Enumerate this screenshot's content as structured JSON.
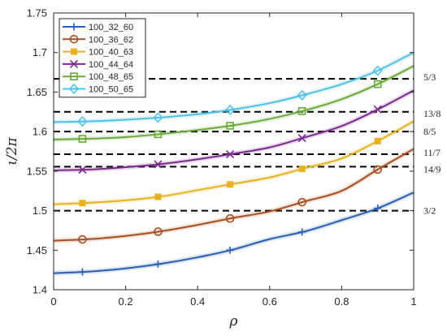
{
  "chart_data": {
    "type": "line",
    "xlabel": "ρ",
    "ylabel": "ι/2π",
    "xlim": [
      0,
      1
    ],
    "ylim": [
      1.4,
      1.75
    ],
    "xticks": [
      0,
      0.2,
      0.4,
      0.6,
      0.8,
      1
    ],
    "xtick_labels": [
      "0",
      "0.2",
      "0.4",
      "0.6",
      "0.8",
      "1"
    ],
    "yticks": [
      1.4,
      1.45,
      1.5,
      1.55,
      1.6,
      1.65,
      1.7,
      1.75
    ],
    "ytick_labels": [
      "1.4",
      "1.45",
      "1.5",
      "1.55",
      "1.6",
      "1.65",
      "1.7",
      "1.75"
    ],
    "grid": false,
    "legend_position": "top-left",
    "series": [
      {
        "name": "100_32_60",
        "color": "#2a5fb0",
        "marker": "plus",
        "x": [
          0,
          0.1,
          0.2,
          0.3,
          0.4,
          0.5,
          0.6,
          0.7,
          0.8,
          0.9,
          1.0
        ],
        "y": [
          1.421,
          1.423,
          1.427,
          1.433,
          1.441,
          1.451,
          1.464,
          1.474,
          1.488,
          1.503,
          1.523
        ],
        "marker_x": [
          0.08,
          0.29,
          0.49,
          0.69,
          0.9
        ]
      },
      {
        "name": "100_36_62",
        "color": "#a84f22",
        "marker": "circle",
        "x": [
          0,
          0.1,
          0.2,
          0.3,
          0.4,
          0.5,
          0.6,
          0.7,
          0.8,
          0.9,
          1.0
        ],
        "y": [
          1.462,
          1.464,
          1.468,
          1.474,
          1.482,
          1.491,
          1.499,
          1.512,
          1.525,
          1.552,
          1.578
        ],
        "marker_x": [
          0.08,
          0.29,
          0.49,
          0.69,
          0.9
        ]
      },
      {
        "name": "100_40_63",
        "color": "#e8b11f",
        "marker": "square-filled",
        "x": [
          0,
          0.1,
          0.2,
          0.3,
          0.4,
          0.5,
          0.6,
          0.7,
          0.8,
          0.9,
          1.0
        ],
        "y": [
          1.508,
          1.51,
          1.513,
          1.518,
          1.526,
          1.534,
          1.542,
          1.554,
          1.566,
          1.588,
          1.613
        ],
        "marker_x": [
          0.08,
          0.29,
          0.49,
          0.69,
          0.9
        ]
      },
      {
        "name": "100_44_64",
        "color": "#7a2a8c",
        "marker": "x",
        "x": [
          0,
          0.1,
          0.2,
          0.3,
          0.4,
          0.5,
          0.6,
          0.7,
          0.8,
          0.9,
          1.0
        ],
        "y": [
          1.551,
          1.552,
          1.555,
          1.559,
          1.565,
          1.572,
          1.58,
          1.593,
          1.607,
          1.628,
          1.652
        ],
        "marker_x": [
          0.08,
          0.29,
          0.49,
          0.69,
          0.9
        ]
      },
      {
        "name": "100_48_65",
        "color": "#6aa83c",
        "marker": "square",
        "x": [
          0,
          0.1,
          0.2,
          0.3,
          0.4,
          0.5,
          0.6,
          0.7,
          0.8,
          0.9,
          1.0
        ],
        "y": [
          1.59,
          1.591,
          1.593,
          1.597,
          1.602,
          1.608,
          1.616,
          1.627,
          1.641,
          1.66,
          1.683
        ],
        "marker_x": [
          0.08,
          0.29,
          0.49,
          0.69,
          0.9
        ]
      },
      {
        "name": "100_50_65",
        "color": "#4fc0e8",
        "marker": "diamond",
        "x": [
          0,
          0.1,
          0.2,
          0.3,
          0.4,
          0.5,
          0.6,
          0.7,
          0.8,
          0.9,
          1.0
        ],
        "y": [
          1.612,
          1.613,
          1.615,
          1.618,
          1.622,
          1.628,
          1.636,
          1.647,
          1.66,
          1.677,
          1.7
        ],
        "marker_x": [
          0.08,
          0.29,
          0.49,
          0.69,
          0.9
        ]
      }
    ],
    "reference_lines": [
      {
        "y": 1.6667,
        "label": "5/3"
      },
      {
        "y": 1.625,
        "label": "13/8"
      },
      {
        "y": 1.6,
        "label": "8/5"
      },
      {
        "y": 1.5714,
        "label": "11/7"
      },
      {
        "y": 1.5556,
        "label": "14/9"
      },
      {
        "y": 1.5,
        "label": "3/2"
      }
    ]
  }
}
